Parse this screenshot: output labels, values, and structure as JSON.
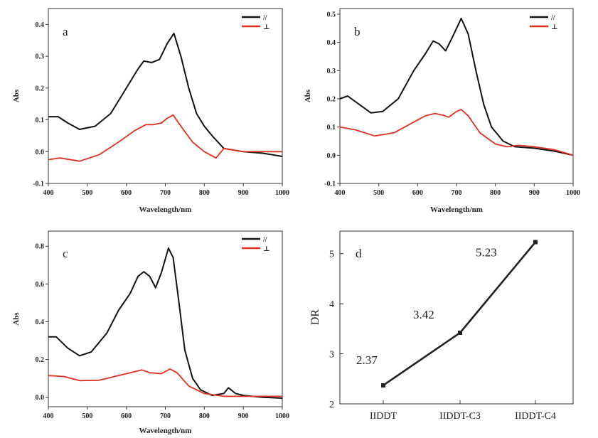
{
  "chart_data": [
    {
      "type": "line",
      "panel": "a",
      "xlabel": "Wavelength/nm",
      "ylabel": "Abs",
      "xlim": [
        400,
        1000
      ],
      "ylim": [
        -0.1,
        0.45
      ],
      "xticks": [
        400,
        500,
        600,
        700,
        800,
        900,
        1000
      ],
      "yticks": [
        -0.1,
        0.0,
        0.1,
        0.2,
        0.3,
        0.4
      ],
      "ytick_labels": [
        "-0.1",
        "0.0",
        "0.1",
        "0.2",
        "0.3",
        "0.4"
      ],
      "legend": {
        "placement": "top-right",
        "entries": [
          "//",
          "⊥"
        ]
      },
      "series": [
        {
          "name": "//",
          "color": "#111111",
          "points": [
            [
              400,
              0.11
            ],
            [
              425,
              0.11
            ],
            [
              450,
              0.09
            ],
            [
              480,
              0.07
            ],
            [
              520,
              0.08
            ],
            [
              560,
              0.12
            ],
            [
              600,
              0.2
            ],
            [
              630,
              0.26
            ],
            [
              645,
              0.285
            ],
            [
              665,
              0.28
            ],
            [
              685,
              0.29
            ],
            [
              705,
              0.34
            ],
            [
              722,
              0.372
            ],
            [
              740,
              0.3
            ],
            [
              760,
              0.2
            ],
            [
              780,
              0.12
            ],
            [
              800,
              0.08
            ],
            [
              820,
              0.05
            ],
            [
              850,
              0.01
            ],
            [
              900,
              0.0
            ],
            [
              950,
              -0.005
            ],
            [
              1000,
              -0.015
            ]
          ]
        },
        {
          "name": "⊥",
          "color": "#e0301e",
          "points": [
            [
              400,
              -0.025
            ],
            [
              430,
              -0.02
            ],
            [
              480,
              -0.03
            ],
            [
              530,
              -0.01
            ],
            [
              580,
              0.03
            ],
            [
              620,
              0.065
            ],
            [
              650,
              0.085
            ],
            [
              670,
              0.085
            ],
            [
              690,
              0.09
            ],
            [
              705,
              0.105
            ],
            [
              720,
              0.115
            ],
            [
              740,
              0.08
            ],
            [
              770,
              0.03
            ],
            [
              800,
              0.0
            ],
            [
              830,
              -0.02
            ],
            [
              850,
              0.01
            ],
            [
              900,
              0.0
            ],
            [
              950,
              0.0
            ],
            [
              1000,
              0.0
            ]
          ]
        }
      ]
    },
    {
      "type": "line",
      "panel": "b",
      "xlabel": "Wavelength/nm",
      "ylabel": "Abs",
      "xlim": [
        400,
        1000
      ],
      "ylim": [
        -0.1,
        0.52
      ],
      "xticks": [
        400,
        500,
        600,
        700,
        800,
        900,
        1000
      ],
      "yticks": [
        -0.1,
        0.0,
        0.1,
        0.2,
        0.3,
        0.4,
        0.5
      ],
      "ytick_labels": [
        "-0.1",
        "0.0",
        "0.1",
        "0.2",
        "0.3",
        "0.4",
        "0.5"
      ],
      "legend": {
        "placement": "top-right",
        "entries": [
          "//",
          "⊥"
        ]
      },
      "series": [
        {
          "name": "//",
          "color": "#111111",
          "points": [
            [
              400,
              0.2
            ],
            [
              420,
              0.21
            ],
            [
              450,
              0.18
            ],
            [
              480,
              0.15
            ],
            [
              510,
              0.155
            ],
            [
              550,
              0.2
            ],
            [
              590,
              0.3
            ],
            [
              620,
              0.36
            ],
            [
              640,
              0.405
            ],
            [
              655,
              0.395
            ],
            [
              672,
              0.37
            ],
            [
              690,
              0.42
            ],
            [
              712,
              0.485
            ],
            [
              730,
              0.43
            ],
            [
              750,
              0.3
            ],
            [
              770,
              0.18
            ],
            [
              790,
              0.1
            ],
            [
              820,
              0.05
            ],
            [
              850,
              0.03
            ],
            [
              900,
              0.025
            ],
            [
              950,
              0.015
            ],
            [
              1000,
              0.0
            ]
          ]
        },
        {
          "name": "⊥",
          "color": "#e0301e",
          "points": [
            [
              400,
              0.1
            ],
            [
              440,
              0.09
            ],
            [
              490,
              0.068
            ],
            [
              540,
              0.08
            ],
            [
              580,
              0.11
            ],
            [
              620,
              0.14
            ],
            [
              645,
              0.148
            ],
            [
              665,
              0.142
            ],
            [
              680,
              0.135
            ],
            [
              700,
              0.155
            ],
            [
              712,
              0.162
            ],
            [
              730,
              0.14
            ],
            [
              760,
              0.08
            ],
            [
              800,
              0.04
            ],
            [
              830,
              0.03
            ],
            [
              860,
              0.035
            ],
            [
              900,
              0.03
            ],
            [
              950,
              0.02
            ],
            [
              1000,
              0.0
            ]
          ]
        }
      ]
    },
    {
      "type": "line",
      "panel": "c",
      "xlabel": "Wavelength/nm",
      "ylabel": "Abs",
      "xlim": [
        400,
        1000
      ],
      "ylim": [
        -0.05,
        0.88
      ],
      "xticks": [
        400,
        500,
        600,
        700,
        800,
        900,
        1000
      ],
      "yticks": [
        0.0,
        0.2,
        0.4,
        0.6,
        0.8
      ],
      "ytick_labels": [
        "0.0",
        "0.2",
        "0.4",
        "0.6",
        "0.8"
      ],
      "legend": {
        "placement": "top-right",
        "entries": [
          "//",
          "⊥"
        ]
      },
      "series": [
        {
          "name": "//",
          "color": "#111111",
          "points": [
            [
              400,
              0.32
            ],
            [
              420,
              0.32
            ],
            [
              450,
              0.26
            ],
            [
              480,
              0.22
            ],
            [
              510,
              0.24
            ],
            [
              550,
              0.34
            ],
            [
              580,
              0.46
            ],
            [
              610,
              0.55
            ],
            [
              630,
              0.64
            ],
            [
              645,
              0.665
            ],
            [
              660,
              0.64
            ],
            [
              675,
              0.58
            ],
            [
              690,
              0.66
            ],
            [
              708,
              0.79
            ],
            [
              720,
              0.74
            ],
            [
              735,
              0.5
            ],
            [
              750,
              0.25
            ],
            [
              770,
              0.1
            ],
            [
              790,
              0.04
            ],
            [
              820,
              0.01
            ],
            [
              850,
              0.02
            ],
            [
              862,
              0.05
            ],
            [
              880,
              0.02
            ],
            [
              900,
              0.01
            ],
            [
              950,
              0.0
            ],
            [
              1000,
              -0.005
            ]
          ]
        },
        {
          "name": "⊥",
          "color": "#e0301e",
          "points": [
            [
              400,
              0.115
            ],
            [
              440,
              0.11
            ],
            [
              480,
              0.088
            ],
            [
              530,
              0.09
            ],
            [
              570,
              0.11
            ],
            [
              610,
              0.13
            ],
            [
              640,
              0.145
            ],
            [
              660,
              0.13
            ],
            [
              690,
              0.125
            ],
            [
              712,
              0.15
            ],
            [
              730,
              0.13
            ],
            [
              760,
              0.06
            ],
            [
              800,
              0.02
            ],
            [
              850,
              0.005
            ],
            [
              900,
              0.005
            ],
            [
              950,
              0.005
            ],
            [
              1000,
              0.005
            ]
          ]
        }
      ]
    },
    {
      "type": "line",
      "panel": "d",
      "xlabel": "",
      "ylabel": "DR",
      "categories": [
        "IIDDT",
        "IIDDT-C3",
        "IIDDT-C4"
      ],
      "values": [
        2.37,
        3.42,
        5.23
      ],
      "data_labels": [
        "2.37",
        "3.42",
        "5.23"
      ],
      "ylim": [
        2,
        5.45
      ],
      "yticks": [
        2,
        3,
        4,
        5
      ],
      "ytick_labels": [
        "2",
        "3",
        "4",
        "5"
      ],
      "color": "#222222"
    }
  ]
}
